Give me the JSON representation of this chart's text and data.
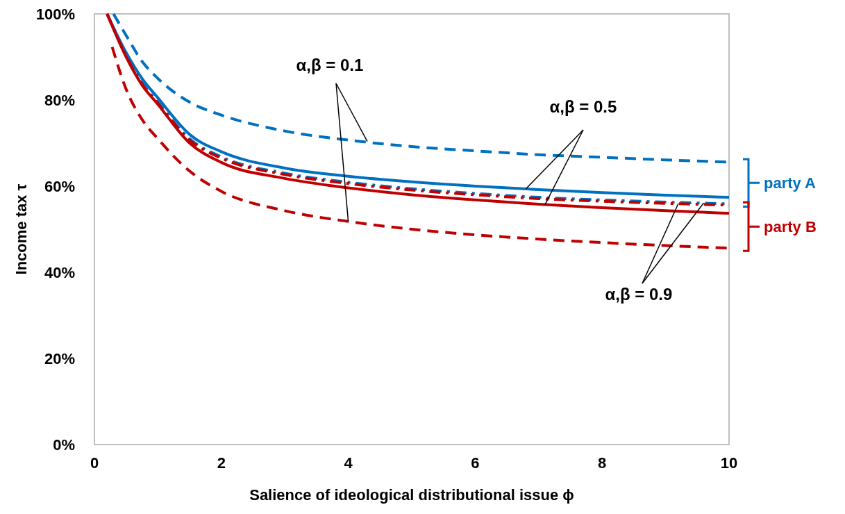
{
  "chart_data": {
    "type": "line",
    "xlabel": "Salience of ideological distributional issue ϕ",
    "ylabel": "Income tax τ",
    "xlim": [
      0,
      10
    ],
    "xticks": [
      0,
      2,
      4,
      6,
      8,
      10
    ],
    "ylim": [
      0,
      100
    ],
    "yticks": [
      {
        "value": 0,
        "label": "0%"
      },
      {
        "value": 20,
        "label": "20%"
      },
      {
        "value": 40,
        "label": "40%"
      },
      {
        "value": 60,
        "label": "60%"
      },
      {
        "value": 80,
        "label": "80%"
      },
      {
        "value": 100,
        "label": "100%"
      }
    ],
    "grid": false,
    "legend": "right",
    "marker": "none",
    "series": [
      {
        "color": "#0070c0",
        "line_style": "dashed",
        "x": [
          0.3,
          0.5,
          0.75,
          1,
          1.5,
          2,
          3,
          4,
          5,
          6,
          7,
          8,
          9,
          10
        ],
        "values": [
          100,
          95,
          89,
          85,
          79.5,
          76.5,
          72.8,
          70.7,
          69.2,
          68.2,
          67.3,
          66.7,
          66.1,
          65.6
        ]
      },
      {
        "name": "party A",
        "color": "#0070c0",
        "line_style": "solid",
        "x": [
          0.2,
          0.5,
          0.75,
          1,
          1.5,
          2,
          3,
          4,
          5,
          6,
          7,
          8,
          9,
          10
        ],
        "values": [
          100,
          91,
          85,
          80.5,
          72,
          68,
          64.2,
          62.3,
          61,
          60,
          59.2,
          58.5,
          57.9,
          57.4
        ]
      },
      {
        "color": "#0070c0",
        "line_style": "dashdot",
        "x": [
          0.2,
          0.5,
          0.75,
          1,
          1.5,
          2,
          3,
          4,
          5,
          6,
          7,
          8,
          9,
          10
        ],
        "values": [
          100,
          90.5,
          84,
          79.5,
          71,
          66.8,
          63,
          60.9,
          59.4,
          58.3,
          57.4,
          56.8,
          56.3,
          55.9
        ]
      },
      {
        "color": "#c00000",
        "line_style": "dashed",
        "x": [
          0.28,
          0.5,
          0.75,
          1,
          1.5,
          2,
          3,
          4,
          5,
          6,
          7,
          8,
          9,
          10
        ],
        "values": [
          92.3,
          82.5,
          75.5,
          71,
          63.5,
          58.8,
          54.3,
          51.8,
          50,
          48.7,
          47.7,
          46.9,
          46.2,
          45.6
        ]
      },
      {
        "name": "party B",
        "color": "#c00000",
        "line_style": "solid",
        "x": [
          0.2,
          0.5,
          0.75,
          1,
          1.5,
          2,
          3,
          4,
          5,
          6,
          7,
          8,
          9,
          10
        ],
        "values": [
          100,
          90,
          83.5,
          79,
          70,
          65.5,
          61.8,
          59.6,
          58,
          56.8,
          55.8,
          55,
          54.3,
          53.7
        ]
      },
      {
        "color": "#c00000",
        "line_style": "dashdot",
        "x": [
          0.2,
          0.5,
          0.75,
          1,
          1.5,
          2,
          3,
          4,
          5,
          6,
          7,
          8,
          9,
          10
        ],
        "values": [
          100,
          90.2,
          83.7,
          79.2,
          70.7,
          66.5,
          62.7,
          60.6,
          59.1,
          58,
          57.1,
          56.5,
          56,
          55.6
        ]
      }
    ],
    "annotations": [
      {
        "text": "α,β = 0.1",
        "x": 4.3,
        "y": 70.4
      },
      {
        "text": "α,β = 0.5",
        "x": 6.8,
        "y": 59.4
      },
      {
        "text": "α,β = 0.9",
        "x": 9.6,
        "y": 56.1
      }
    ]
  }
}
